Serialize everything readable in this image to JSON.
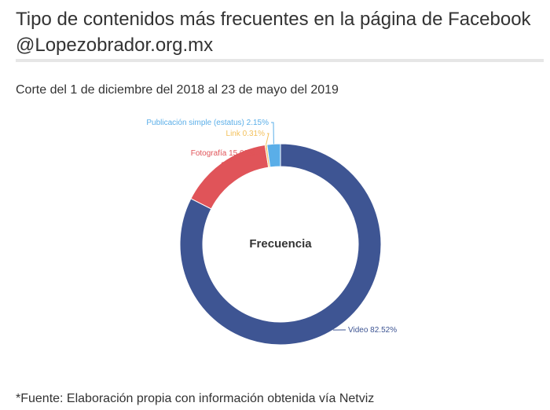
{
  "title": "Tipo de contenidos más frecuentes en la página de Facebook @Lopezobrador.org.mx",
  "subtitle": "Corte del 1 de diciembre del 2018 al 23 de mayo del 2019",
  "source": "*Fuente: Elaboración propia con información obtenida vía Netviz",
  "chart_data": {
    "type": "pie",
    "variant": "donut",
    "center_label": "Frecuencia",
    "categories": [
      "Video",
      "Fotografía",
      "Link",
      "Publicación simple (estatus)"
    ],
    "values": [
      82.52,
      15.03,
      0.31,
      2.15
    ],
    "unit": "%",
    "colors": [
      "#3e5593",
      "#e05459",
      "#f3c15c",
      "#5aaee8"
    ],
    "labels": [
      {
        "name": "Video",
        "value": "82.52%",
        "color": "#3e5593"
      },
      {
        "name": "Fotografía",
        "value": "15.03%",
        "color": "#e05459"
      },
      {
        "name": "Link",
        "value": "0.31%",
        "color": "#f3c15c"
      },
      {
        "name": "Publicación simple (estatus)",
        "value": "2.15%",
        "color": "#5aaee8"
      }
    ]
  }
}
